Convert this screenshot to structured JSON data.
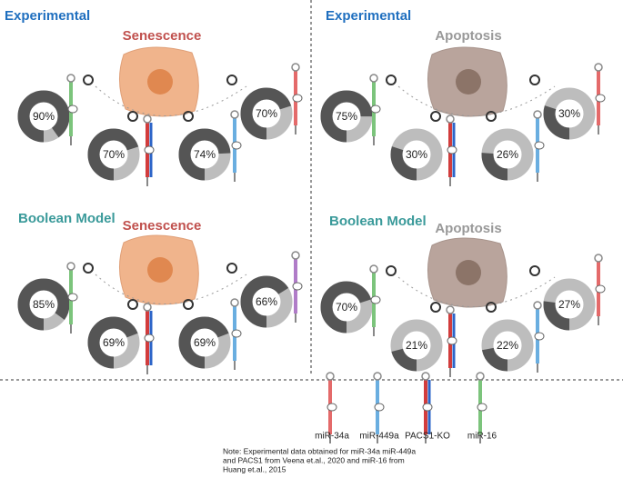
{
  "panels": [
    {
      "section": "Experimental",
      "title": "Senescence",
      "donuts": [
        {
          "value": 90,
          "label": "90%"
        },
        {
          "value": 70,
          "label": "70%"
        },
        {
          "value": 74,
          "label": "74%"
        },
        {
          "value": 70,
          "label": "70%"
        }
      ]
    },
    {
      "section": "Experimental",
      "title": "Apoptosis",
      "donuts": [
        {
          "value": 75,
          "label": "75%"
        },
        {
          "value": 30,
          "label": "30%"
        },
        {
          "value": 26,
          "label": "26%"
        },
        {
          "value": 30,
          "label": "30%"
        }
      ]
    },
    {
      "section": "Boolean Model",
      "title": "Senescence",
      "donuts": [
        {
          "value": 85,
          "label": "85%"
        },
        {
          "value": 69,
          "label": "69%"
        },
        {
          "value": 69,
          "label": "69%"
        },
        {
          "value": 66,
          "label": "66%"
        }
      ]
    },
    {
      "section": "Boolean Model",
      "title": "Apoptosis",
      "donuts": [
        {
          "value": 70,
          "label": "70%"
        },
        {
          "value": 21,
          "label": "21%"
        },
        {
          "value": 22,
          "label": "22%"
        },
        {
          "value": 27,
          "label": "27%"
        }
      ]
    }
  ],
  "legend": [
    "miR-34a",
    "miR-449a",
    "PACS1-KO",
    "miR-16"
  ],
  "note": [
    "Note: Experimental data obtained for miR-34a miR-449a",
    "and PACS1 from Veena et.al., 2020 and miR-16 from",
    "Huang et.al., 2015"
  ]
}
